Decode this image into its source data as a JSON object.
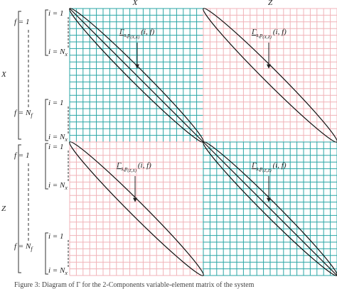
{
  "column_labels": [
    "X",
    "Z"
  ],
  "row_labels": [
    "X",
    "Z"
  ],
  "index_labels": {
    "f_first": "f = 1",
    "f_last": {
      "main": "f = N",
      "sub": "f"
    },
    "i_first": "i = 1",
    "i_last": {
      "main": "i = N",
      "sub": "x"
    }
  },
  "blocks": [
    {
      "annotation": {
        "symbol": "Γ",
        "sub": "s,p",
        "subsub": "(X,X)",
        "args": "(i, f)"
      }
    },
    {
      "annotation": {
        "symbol": "Γ",
        "sub": "s,p",
        "subsub": "(X,Z)",
        "args": "(i, f)"
      }
    },
    {
      "annotation": {
        "symbol": "Γ",
        "sub": "s,p",
        "subsub": "(Z,X)",
        "args": "(i, f)"
      }
    },
    {
      "annotation": {
        "symbol": "Γ",
        "sub": "s,p",
        "subsub": "(Z,Z)",
        "args": "(i, f)"
      }
    }
  ],
  "caption": "Figure 3: Diagram of Γ for the 2-Components variable-element matrix of the system"
}
